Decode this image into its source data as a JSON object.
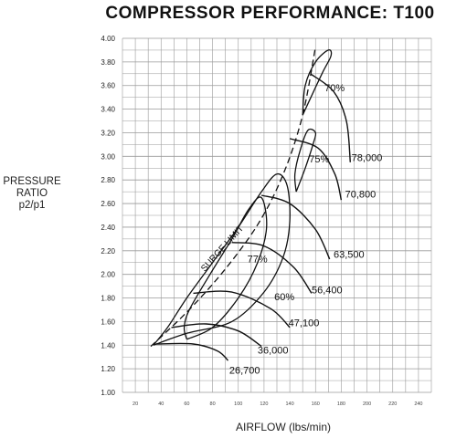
{
  "title": "COMPRESSOR  PERFORMANCE: T100",
  "ylabel": {
    "line1": "PRESSURE",
    "line2": "RATIO",
    "line3": "p2/p1"
  },
  "xlabel": "AIRFLOW (lbs/min)",
  "chart_data": {
    "type": "line",
    "title": "COMPRESSOR  PERFORMANCE: T100",
    "xlabel": "AIRFLOW (lbs/min)",
    "ylabel": "PRESSURE RATIO p2/p1",
    "xlim": [
      10,
      250
    ],
    "ylim": [
      1.0,
      4.0
    ],
    "x_ticks": [
      20,
      40,
      60,
      80,
      100,
      120,
      140,
      160,
      180,
      200,
      220,
      240
    ],
    "y_ticks": [
      "1.00",
      "1.20",
      "1.40",
      "1.60",
      "1.80",
      "2.00",
      "2.20",
      "2.40",
      "2.60",
      "2.80",
      "3.00",
      "3.20",
      "3.40",
      "3.60",
      "3.80",
      "4.00"
    ],
    "grid": true,
    "surge_limit": {
      "label": "SURGE LIMIT",
      "points": [
        [
          32,
          1.39
        ],
        [
          60,
          1.68
        ],
        [
          88,
          2.02
        ],
        [
          115,
          2.42
        ],
        [
          135,
          2.85
        ],
        [
          150,
          3.35
        ],
        [
          160,
          3.93
        ]
      ]
    },
    "speed_lines": [
      {
        "label": "26,700",
        "points": [
          [
            36,
            1.41
          ],
          [
            65,
            1.41
          ],
          [
            84,
            1.35
          ],
          [
            92,
            1.27
          ]
        ],
        "label_at": [
          93,
          1.16
        ]
      },
      {
        "label": "36,000",
        "points": [
          [
            48,
            1.55
          ],
          [
            75,
            1.58
          ],
          [
            100,
            1.52
          ],
          [
            118,
            1.39
          ]
        ],
        "label_at": [
          115,
          1.33
        ]
      },
      {
        "label": "47,100",
        "points": [
          [
            65,
            1.84
          ],
          [
            95,
            1.85
          ],
          [
            125,
            1.71
          ],
          [
            140,
            1.55
          ]
        ],
        "label_at": [
          139,
          1.56
        ]
      },
      {
        "label": "56,400",
        "points": [
          [
            95,
            2.27
          ],
          [
            120,
            2.24
          ],
          [
            143,
            2.06
          ],
          [
            157,
            1.84
          ]
        ],
        "label_at": [
          157,
          1.84
        ]
      },
      {
        "label": "63,500",
        "points": [
          [
            118,
            2.67
          ],
          [
            140,
            2.6
          ],
          [
            160,
            2.38
          ],
          [
            171,
            2.13
          ]
        ],
        "label_at": [
          174,
          2.14
        ]
      },
      {
        "label": "70,800",
        "points": [
          [
            140,
            3.15
          ],
          [
            162,
            3.07
          ],
          [
            175,
            2.85
          ],
          [
            180,
            2.63
          ]
        ],
        "label_at": [
          183,
          2.65
        ]
      },
      {
        "label": "78,000",
        "points": [
          [
            156,
            3.7
          ],
          [
            174,
            3.55
          ],
          [
            184,
            3.3
          ],
          [
            187,
            2.95
          ]
        ],
        "label_at": [
          188,
          2.96
        ]
      }
    ],
    "efficiency_islands": [
      {
        "label": "60%",
        "label_at": [
          128,
          1.78
        ]
      },
      {
        "label": "77%",
        "label_at": [
          107,
          2.1
        ]
      },
      {
        "label": "75%",
        "label_at": [
          155,
          2.95
        ]
      },
      {
        "label": "70%",
        "label_at": [
          167,
          3.55
        ]
      }
    ]
  }
}
